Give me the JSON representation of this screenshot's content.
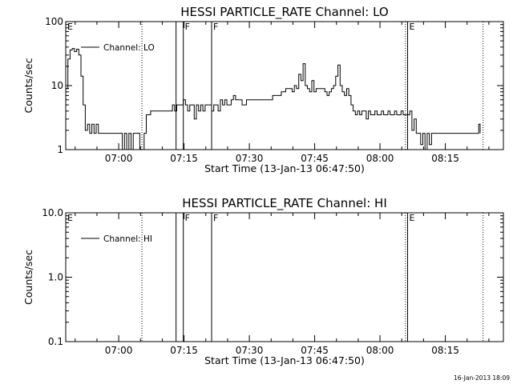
{
  "footer": {
    "timestamp": "16-Jan-2013 18:09"
  },
  "chart_data": [
    {
      "type": "line",
      "title": "HESSI PARTICLE_RATE Channel: LO",
      "xlabel": "Start Time (13-Jan-13 06:47:50)",
      "ylabel": "Counts/sec",
      "yscale": "log",
      "ylim": [
        1,
        100
      ],
      "xlim": [
        "06:47:50",
        "08:28:20"
      ],
      "xticks": [
        "07:00",
        "07:15",
        "07:30",
        "07:45",
        "08:00",
        "08:15"
      ],
      "yticks": [
        "1",
        "10",
        "100"
      ],
      "legend": {
        "position": "top-left",
        "entries": [
          "Channel: LO"
        ]
      },
      "grid": false,
      "series": [
        {
          "name": "Channel: LO",
          "color": "#000000",
          "x": [
            "06:47:50",
            "06:48:20",
            "06:48:50",
            "06:49:20",
            "06:49:50",
            "06:50:20",
            "06:50:50",
            "06:51:20",
            "06:51:50",
            "06:52:20",
            "06:52:50",
            "06:53:20",
            "06:53:50",
            "06:54:20",
            "06:54:50",
            "06:55:20",
            "06:56:20",
            "06:57:20",
            "06:58:20",
            "06:59:20",
            "07:00:20",
            "07:00:50",
            "07:01:20",
            "07:01:50",
            "07:02:20",
            "07:02:50",
            "07:03:20",
            "07:03:50",
            "07:04:20",
            "07:04:50",
            "07:05:20",
            "07:05:50",
            "07:06:20",
            "07:07:20",
            "07:08:20",
            "07:09:20",
            "07:10:20",
            "07:11:20",
            "07:11:50",
            "07:12:20",
            "07:12:50",
            "07:13:20",
            "07:13:50",
            "07:14:20",
            "07:14:50",
            "07:15:20",
            "07:15:50",
            "07:16:20",
            "07:16:50",
            "07:17:20",
            "07:17:50",
            "07:18:20",
            "07:18:50",
            "07:19:20",
            "07:19:50",
            "07:20:20",
            "07:20:50",
            "07:21:20",
            "07:21:50",
            "07:22:20",
            "07:22:50",
            "07:23:20",
            "07:23:50",
            "07:24:20",
            "07:24:50",
            "07:25:20",
            "07:25:50",
            "07:26:20",
            "07:26:50",
            "07:27:20",
            "07:28:20",
            "07:29:20",
            "07:30:20",
            "07:31:20",
            "07:32:20",
            "07:33:20",
            "07:34:20",
            "07:35:20",
            "07:36:20",
            "07:37:20",
            "07:38:20",
            "07:39:20",
            "07:39:50",
            "07:40:20",
            "07:40:50",
            "07:41:20",
            "07:41:50",
            "07:42:20",
            "07:42:50",
            "07:43:20",
            "07:43:50",
            "07:44:20",
            "07:44:50",
            "07:45:20",
            "07:46:20",
            "07:47:20",
            "07:47:50",
            "07:48:20",
            "07:48:50",
            "07:49:20",
            "07:49:50",
            "07:50:20",
            "07:50:50",
            "07:51:20",
            "07:51:50",
            "07:52:20",
            "07:52:50",
            "07:53:20",
            "07:53:50",
            "07:54:20",
            "07:54:50",
            "07:55:20",
            "07:55:50",
            "07:56:20",
            "07:56:50",
            "07:57:20",
            "07:57:50",
            "07:58:20",
            "07:58:50",
            "07:59:20",
            "07:59:50",
            "08:00:20",
            "08:00:50",
            "08:01:20",
            "08:01:50",
            "08:02:20",
            "08:02:50",
            "08:03:20",
            "08:03:50",
            "08:04:20",
            "08:04:50",
            "08:05:20",
            "08:06:20",
            "08:06:50",
            "08:07:20",
            "08:07:50",
            "08:08:20",
            "08:08:50",
            "08:09:20",
            "08:09:50",
            "08:10:20",
            "08:10:50",
            "08:11:20",
            "08:11:50",
            "08:12:20",
            "08:13:20",
            "08:14:20",
            "08:15:20",
            "08:16:20",
            "08:17:20",
            "08:18:20",
            "08:19:20",
            "08:20:20",
            "08:21:20",
            "08:22:20",
            "08:22:40",
            "08:23:00"
          ],
          "y": [
            9,
            26,
            36,
            38,
            34,
            37,
            30,
            14,
            5,
            2,
            2.5,
            1.8,
            2.5,
            1.8,
            2.5,
            1.8,
            1.8,
            1.8,
            1.8,
            1.8,
            1.8,
            1,
            1.8,
            1,
            1.8,
            1,
            1.8,
            1.8,
            1.8,
            1,
            1,
            1.8,
            3.5,
            4,
            4,
            4,
            4,
            4,
            4,
            5,
            4,
            5,
            5,
            5,
            6,
            5,
            4,
            5,
            5,
            3,
            5,
            4,
            5,
            4,
            5,
            5,
            5,
            4,
            5,
            5,
            4,
            6,
            5,
            6,
            5,
            5,
            6,
            7,
            6,
            6,
            5,
            6,
            6,
            6,
            6,
            6,
            6,
            7,
            7,
            8,
            9,
            9,
            8,
            10,
            9,
            15,
            12,
            22,
            10,
            9,
            8,
            12,
            8,
            9,
            9,
            8,
            7,
            8,
            9,
            10,
            14,
            21,
            10,
            8,
            7,
            9,
            7,
            5,
            4,
            3.5,
            4,
            3.5,
            4,
            4,
            3,
            4,
            3.5,
            3.5,
            4,
            3.5,
            3.5,
            4,
            3.5,
            3.5,
            4,
            3.5,
            3.5,
            4,
            3.5,
            3.5,
            4,
            3.5,
            3.5,
            4,
            2,
            3,
            1.8,
            1.8,
            1.2,
            1.8,
            1,
            1.8,
            1.2,
            1.8,
            1.8,
            1.8,
            1.8,
            1.8,
            1.8,
            1.8,
            1.8,
            1.8,
            1.8,
            1.8,
            1.8,
            2.5,
            1.8
          ]
        }
      ],
      "markers": [
        {
          "label": "E",
          "time": "06:47:50",
          "style": "dotted"
        },
        {
          "label": "",
          "time": "07:05:20",
          "style": "dotted"
        },
        {
          "label": "",
          "time": "07:13:10",
          "style": "solid"
        },
        {
          "label": "F",
          "time": "07:14:50",
          "style": "solid"
        },
        {
          "label": "F",
          "time": "07:21:20",
          "style": "solid"
        },
        {
          "label": "",
          "time": "08:05:50",
          "style": "dotted"
        },
        {
          "label": "E",
          "time": "08:06:20",
          "style": "solid"
        },
        {
          "label": "",
          "time": "08:23:40",
          "style": "dotted"
        }
      ]
    },
    {
      "type": "line",
      "title": "HESSI PARTICLE_RATE Channel: HI",
      "xlabel": "Start Time (13-Jan-13 06:47:50)",
      "ylabel": "Counts/sec",
      "yscale": "log",
      "ylim": [
        0.1,
        10
      ],
      "xlim": [
        "06:47:50",
        "08:28:20"
      ],
      "xticks": [
        "07:00",
        "07:15",
        "07:30",
        "07:45",
        "08:00",
        "08:15"
      ],
      "yticks": [
        "0.1",
        "1.0",
        "10.0"
      ],
      "legend": {
        "position": "top-left",
        "entries": [
          "Channel: HI"
        ]
      },
      "grid": false,
      "series": [
        {
          "name": "Channel: HI",
          "color": "#000000",
          "x": [],
          "y": []
        }
      ],
      "markers": [
        {
          "label": "E",
          "time": "06:47:50",
          "style": "dotted"
        },
        {
          "label": "",
          "time": "07:05:20",
          "style": "dotted"
        },
        {
          "label": "",
          "time": "07:13:10",
          "style": "solid"
        },
        {
          "label": "F",
          "time": "07:14:50",
          "style": "solid"
        },
        {
          "label": "F",
          "time": "07:21:20",
          "style": "solid"
        },
        {
          "label": "",
          "time": "08:05:50",
          "style": "dotted"
        },
        {
          "label": "E",
          "time": "08:06:20",
          "style": "solid"
        },
        {
          "label": "",
          "time": "08:23:40",
          "style": "dotted"
        }
      ]
    }
  ]
}
